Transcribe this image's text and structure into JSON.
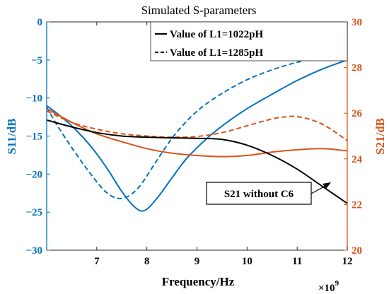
{
  "chart_data": {
    "type": "line",
    "title": "Simulated S-parameters",
    "xlabel": "Frequency/Hz",
    "x_exponent_label": "×10",
    "x_exponent_power": "9",
    "ylabel_left": "S11/dB",
    "ylabel_right": "S21/dB",
    "xlim": [
      6,
      12
    ],
    "ylim_left": [
      -30,
      0
    ],
    "ylim_right": [
      20,
      30
    ],
    "x_ticks": [
      "7",
      "8",
      "9",
      "10",
      "11",
      "12"
    ],
    "y_left_ticks": [
      "0",
      "−5",
      "−10",
      "−15",
      "−20",
      "−25",
      "−30"
    ],
    "y_right_ticks": [
      "30",
      "28",
      "26",
      "24",
      "22",
      "20"
    ],
    "grid": false,
    "legend": {
      "position": "top-right",
      "entries": [
        {
          "label": "Value of L1=1022pH",
          "style": "solid"
        },
        {
          "label": "Value of L1=1285pH",
          "style": "dashed"
        }
      ]
    },
    "annotation": "S21 without C6",
    "colors": {
      "s11": "#0072BD",
      "s21": "#D95319",
      "baseline": "#000000"
    },
    "series": [
      {
        "quantity": "S11",
        "axis": "left",
        "style": "solid",
        "color": "#0072BD",
        "x": [
          6.0,
          6.3,
          6.6,
          6.9,
          7.2,
          7.5,
          7.75,
          7.95,
          8.2,
          8.5,
          8.8,
          9.2,
          9.6,
          10.0,
          10.5,
          11.0,
          11.5,
          12.0
        ],
        "y": [
          -11,
          -12.5,
          -14.3,
          -16.5,
          -19.2,
          -22.3,
          -24.3,
          -24.8,
          -23.2,
          -20.5,
          -17.9,
          -15.3,
          -13.2,
          -11.4,
          -9.5,
          -7.7,
          -6.2,
          -5.0
        ]
      },
      {
        "quantity": "S11",
        "axis": "left",
        "style": "dashed",
        "color": "#0072BD",
        "x": [
          6.0,
          6.2,
          6.5,
          6.8,
          7.1,
          7.3,
          7.5,
          7.7,
          7.9,
          8.2,
          8.5,
          8.8,
          9.1,
          9.5,
          10.0,
          10.5,
          11.0,
          11.5,
          12.0
        ],
        "y": [
          -11.2,
          -13.5,
          -16.5,
          -19.3,
          -21.8,
          -22.9,
          -23.2,
          -22.6,
          -21.2,
          -18.2,
          -15.3,
          -13.0,
          -11.2,
          -9.4,
          -7.6,
          -6.3,
          -5.3,
          -4.6,
          -4.2
        ]
      },
      {
        "quantity": "S21",
        "axis": "right",
        "style": "solid",
        "color": "#D95319",
        "x": [
          6.0,
          6.5,
          7.0,
          7.5,
          8.0,
          8.5,
          9.0,
          9.5,
          10.0,
          10.5,
          11.0,
          11.5,
          12.0
        ],
        "y": [
          26.2,
          25.6,
          25.1,
          24.75,
          24.45,
          24.25,
          24.15,
          24.1,
          24.15,
          24.3,
          24.4,
          24.45,
          24.35
        ]
      },
      {
        "quantity": "S21",
        "axis": "right",
        "style": "dashed",
        "color": "#D95319",
        "x": [
          6.0,
          6.5,
          7.0,
          7.5,
          8.0,
          8.5,
          9.0,
          9.5,
          10.0,
          10.5,
          10.8,
          11.0,
          11.3,
          11.6,
          12.0
        ],
        "y": [
          26.1,
          25.6,
          25.3,
          25.1,
          25.0,
          24.95,
          24.98,
          25.15,
          25.45,
          25.75,
          25.85,
          25.85,
          25.7,
          25.4,
          24.8
        ]
      },
      {
        "quantity": "S21 without C6",
        "axis": "right",
        "style": "solid",
        "color": "#000000",
        "x": [
          6.0,
          6.5,
          7.0,
          7.5,
          8.0,
          8.5,
          9.0,
          9.5,
          10.0,
          10.5,
          11.0,
          11.5,
          12.0
        ],
        "y": [
          25.7,
          25.4,
          25.15,
          25.0,
          24.95,
          24.92,
          24.9,
          24.85,
          24.6,
          24.15,
          23.55,
          22.8,
          22.05
        ]
      }
    ]
  }
}
